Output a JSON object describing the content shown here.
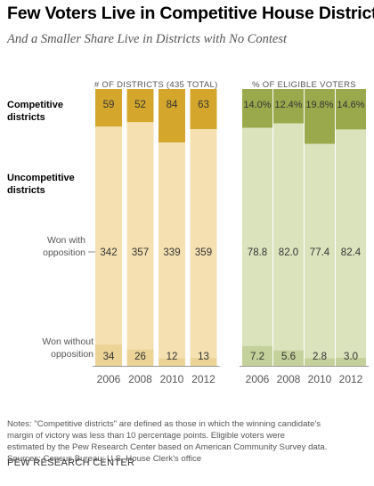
{
  "title": "Few Voters Live in Competitive House Districts",
  "subtitle": "And a Smaller Share Live in Districts with No Contest",
  "row_labels": {
    "competitive": [
      "Competitive",
      "districts"
    ],
    "uncompetitive": [
      "Uncompetitive",
      "districts"
    ],
    "won_with": [
      "Won with",
      "opposition"
    ],
    "won_without": [
      "Won without",
      "opposition"
    ]
  },
  "notes": [
    "Notes: \"Competitive districts\" are defined as those in which the winning candidate's",
    "margin of victory was less than 10 percentage points. Eligible voters were",
    "estimated by the Pew Research Center based on American Community Survey data.",
    "Sources: Census Bureau; U.S. House Clerk's office"
  ],
  "credit": "PEW RESEARCH CENTER",
  "colors": {
    "competitive_districts": "#d4a72c",
    "uncompetitive_districts": "#f4e0b0",
    "won_without_districts": "#ecd497",
    "competitive_voters": "#9aa94c",
    "uncompetitive_voters": "#dbe3bd",
    "won_without_voters": "#c5d19a"
  },
  "chart_data": [
    {
      "type": "bar",
      "title": "# OF DISTRICTS (435 TOTAL)",
      "categories": [
        "2006",
        "2008",
        "2010",
        "2012"
      ],
      "series": [
        {
          "name": "Competitive districts",
          "values": [
            59,
            52,
            84,
            63
          ]
        },
        {
          "name": "Won with opposition",
          "values": [
            342,
            357,
            339,
            359
          ]
        },
        {
          "name": "Won without opposition",
          "values": [
            34,
            26,
            12,
            13
          ]
        }
      ],
      "labels": {
        "competitive": [
          "59",
          "52",
          "84",
          "63"
        ],
        "won_with": [
          "342",
          "357",
          "339",
          "359"
        ],
        "won_without": [
          "34",
          "26",
          "12",
          "13"
        ]
      }
    },
    {
      "type": "bar",
      "title": "% OF ELIGIBLE VOTERS",
      "categories": [
        "2006",
        "2008",
        "2010",
        "2012"
      ],
      "series": [
        {
          "name": "Competitive districts",
          "values": [
            14.0,
            12.4,
            19.8,
            14.6
          ]
        },
        {
          "name": "Won with opposition",
          "values": [
            78.8,
            82.0,
            77.4,
            82.4
          ]
        },
        {
          "name": "Won without opposition",
          "values": [
            7.2,
            5.6,
            2.8,
            3.0
          ]
        }
      ],
      "labels": {
        "competitive": [
          "14.0%",
          "12.4%",
          "19.8%",
          "14.6%"
        ],
        "won_with": [
          "78.8",
          "82.0",
          "77.4",
          "82.4"
        ],
        "won_without": [
          "7.2",
          "5.6",
          "2.8",
          "3.0"
        ]
      }
    }
  ]
}
